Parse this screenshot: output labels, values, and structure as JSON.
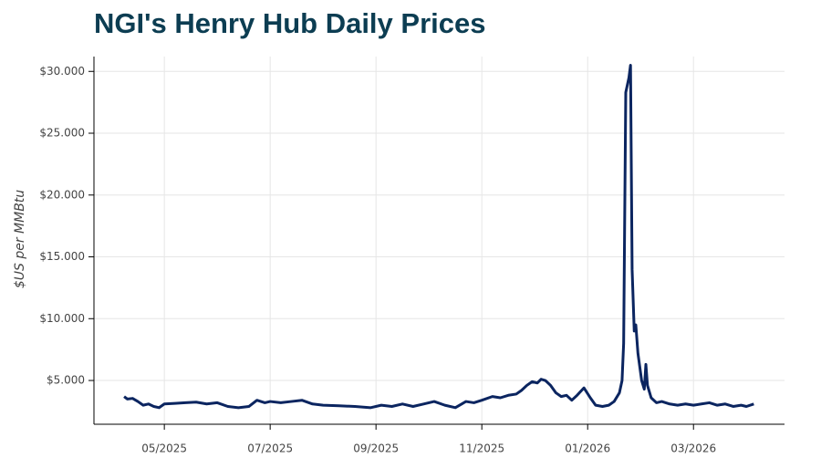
{
  "chart_data": {
    "type": "line",
    "title": "NGI's Henry Hub Daily Prices",
    "y_label": "$US per MMBtu",
    "x": [
      4.24,
      4.3,
      4.4,
      4.5,
      4.6,
      4.7,
      4.8,
      4.9,
      5.0,
      5.2,
      5.4,
      5.6,
      5.8,
      6.0,
      6.2,
      6.4,
      6.6,
      6.75,
      6.9,
      7.0,
      7.2,
      7.4,
      7.6,
      7.8,
      8.0,
      8.3,
      8.6,
      8.9,
      9.1,
      9.3,
      9.5,
      9.7,
      9.9,
      10.1,
      10.3,
      10.5,
      10.7,
      10.85,
      11.0,
      11.2,
      11.35,
      11.5,
      11.65,
      11.75,
      11.85,
      11.95,
      12.05,
      12.12,
      12.2,
      12.3,
      12.4,
      12.5,
      12.6,
      12.7,
      12.8,
      12.93,
      13.05,
      13.15,
      13.28,
      13.4,
      13.5,
      13.6,
      13.65,
      13.68,
      13.72,
      13.78,
      13.81,
      13.84,
      13.88,
      13.91,
      13.95,
      14.02,
      14.07,
      14.1,
      14.13,
      14.2,
      14.3,
      14.4,
      14.55,
      14.7,
      14.85,
      15.0,
      15.15,
      15.3,
      15.45,
      15.6,
      15.75,
      15.9,
      16.0,
      16.14
    ],
    "series": [
      {
        "name": "Henry Hub",
        "color": "#0b2560",
        "values": [
          3.7,
          3.5,
          3.55,
          3.3,
          3.0,
          3.1,
          2.9,
          2.8,
          3.1,
          3.15,
          3.2,
          3.25,
          3.1,
          3.2,
          2.9,
          2.8,
          2.9,
          3.4,
          3.2,
          3.3,
          3.2,
          3.3,
          3.4,
          3.1,
          3.0,
          2.95,
          2.9,
          2.8,
          3.0,
          2.9,
          3.1,
          2.9,
          3.1,
          3.3,
          3.0,
          2.8,
          3.3,
          3.2,
          3.4,
          3.7,
          3.6,
          3.8,
          3.9,
          4.2,
          4.6,
          4.9,
          4.8,
          5.1,
          5.0,
          4.6,
          4.0,
          3.7,
          3.8,
          3.4,
          3.8,
          4.4,
          3.6,
          3.0,
          2.9,
          3.0,
          3.3,
          4.0,
          5.0,
          8.0,
          28.3,
          29.5,
          30.5,
          14,
          9.0,
          9.5,
          7.2,
          5.0,
          4.3,
          6.3,
          4.6,
          3.6,
          3.2,
          3.3,
          3.1,
          3.0,
          3.1,
          3.0,
          3.1,
          3.2,
          3.0,
          3.1,
          2.9,
          3.0,
          2.9,
          3.1
        ]
      }
    ],
    "xlim": [
      3.67,
      16.72
    ],
    "xticks": [
      {
        "value": 5,
        "label": "05/2025"
      },
      {
        "value": 7,
        "label": "07/2025"
      },
      {
        "value": 9,
        "label": "09/2025"
      },
      {
        "value": 11,
        "label": "11/2025"
      },
      {
        "value": 13,
        "label": "01/2026"
      },
      {
        "value": 15,
        "label": "03/2026"
      }
    ],
    "ylim": [
      1.46,
      31.2
    ],
    "yticks": [
      {
        "value": 5,
        "label": "$5.000"
      },
      {
        "value": 10,
        "label": "$10.000"
      },
      {
        "value": 15,
        "label": "$15.000"
      },
      {
        "value": 20,
        "label": "$20.000"
      },
      {
        "value": 25,
        "label": "$25.000"
      },
      {
        "value": 30,
        "label": "$30.000"
      }
    ],
    "grid": true
  }
}
